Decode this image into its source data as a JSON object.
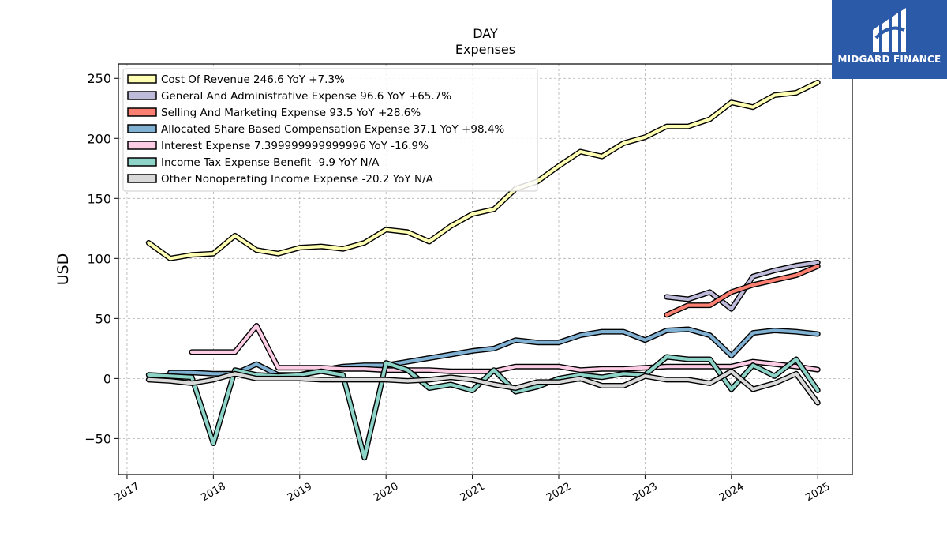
{
  "chart_data": {
    "type": "line",
    "title": "DAY",
    "subtitle": "Expenses",
    "xlabel": "",
    "ylabel": "USD",
    "xlim": [
      2016.9,
      2025.4
    ],
    "ylim": [
      -80,
      262
    ],
    "x_ticks": [
      "2017",
      "2018",
      "2019",
      "2020",
      "2021",
      "2022",
      "2023",
      "2024",
      "2025"
    ],
    "y_ticks": [
      -50,
      0,
      50,
      100,
      150,
      200,
      250
    ],
    "grid": true,
    "legend_position": "top-left",
    "series": [
      {
        "name": "Cost Of Revenue  246.6 YoY +7.3%",
        "color": "#ffffb3",
        "points": [
          [
            2017.25,
            113
          ],
          [
            2017.5,
            100
          ],
          [
            2017.75,
            103
          ],
          [
            2018.0,
            104
          ],
          [
            2018.25,
            119
          ],
          [
            2018.5,
            107
          ],
          [
            2018.75,
            104
          ],
          [
            2019.0,
            109
          ],
          [
            2019.25,
            110
          ],
          [
            2019.5,
            108
          ],
          [
            2019.75,
            113
          ],
          [
            2020.0,
            124
          ],
          [
            2020.25,
            122
          ],
          [
            2020.5,
            114
          ],
          [
            2020.75,
            127
          ],
          [
            2021.0,
            137
          ],
          [
            2021.25,
            141
          ],
          [
            2021.5,
            158
          ],
          [
            2021.75,
            164
          ],
          [
            2022.0,
            177
          ],
          [
            2022.25,
            189
          ],
          [
            2022.5,
            185
          ],
          [
            2022.75,
            196
          ],
          [
            2023.0,
            201
          ],
          [
            2023.25,
            210
          ],
          [
            2023.5,
            210
          ],
          [
            2023.75,
            216
          ],
          [
            2024.0,
            230
          ],
          [
            2024.25,
            226
          ],
          [
            2024.5,
            236
          ],
          [
            2024.75,
            238
          ],
          [
            2025.0,
            246.6
          ]
        ]
      },
      {
        "name": "General And Administrative Expense  96.6 YoY +65.7%",
        "color": "#bebada",
        "points": [
          [
            2023.25,
            68
          ],
          [
            2023.5,
            66
          ],
          [
            2023.75,
            72
          ],
          [
            2024.0,
            58
          ],
          [
            2024.25,
            85
          ],
          [
            2024.5,
            90
          ],
          [
            2024.75,
            94
          ],
          [
            2025.0,
            96.6
          ]
        ]
      },
      {
        "name": "Selling And Marketing Expense  93.5 YoY +28.6%",
        "color": "#fb8072",
        "points": [
          [
            2023.25,
            53
          ],
          [
            2023.5,
            61
          ],
          [
            2023.75,
            61
          ],
          [
            2024.0,
            72
          ],
          [
            2024.25,
            78
          ],
          [
            2024.5,
            82
          ],
          [
            2024.75,
            86
          ],
          [
            2025.0,
            93.5
          ]
        ]
      },
      {
        "name": "Allocated Share Based Compensation Expense  37.1 YoY +98.4%",
        "color": "#80b1d3",
        "points": [
          [
            2017.5,
            5
          ],
          [
            2017.75,
            5
          ],
          [
            2018.0,
            4
          ],
          [
            2018.25,
            4
          ],
          [
            2018.5,
            12
          ],
          [
            2018.75,
            3
          ],
          [
            2019.0,
            3
          ],
          [
            2019.25,
            7
          ],
          [
            2019.5,
            10
          ],
          [
            2019.75,
            11
          ],
          [
            2020.0,
            11
          ],
          [
            2020.25,
            14
          ],
          [
            2020.5,
            17
          ],
          [
            2020.75,
            20
          ],
          [
            2021.0,
            23
          ],
          [
            2021.25,
            25
          ],
          [
            2021.5,
            32
          ],
          [
            2021.75,
            30
          ],
          [
            2022.0,
            30
          ],
          [
            2022.25,
            36
          ],
          [
            2022.5,
            39
          ],
          [
            2022.75,
            39
          ],
          [
            2023.0,
            32
          ],
          [
            2023.25,
            40
          ],
          [
            2023.5,
            41
          ],
          [
            2023.75,
            36
          ],
          [
            2024.0,
            19
          ],
          [
            2024.25,
            38
          ],
          [
            2024.5,
            40
          ],
          [
            2024.75,
            39
          ],
          [
            2025.0,
            37.1
          ]
        ]
      },
      {
        "name": "Interest Expense  7.399999999999996 YoY -16.9%",
        "color": "#fccde5",
        "points": [
          [
            2017.75,
            22
          ],
          [
            2018.0,
            22
          ],
          [
            2018.25,
            22
          ],
          [
            2018.5,
            44
          ],
          [
            2018.75,
            9
          ],
          [
            2019.0,
            9
          ],
          [
            2019.25,
            9
          ],
          [
            2019.5,
            8
          ],
          [
            2019.75,
            8
          ],
          [
            2020.0,
            7
          ],
          [
            2020.25,
            7
          ],
          [
            2020.5,
            7
          ],
          [
            2020.75,
            6
          ],
          [
            2021.0,
            6
          ],
          [
            2021.25,
            6
          ],
          [
            2021.5,
            10
          ],
          [
            2021.75,
            10
          ],
          [
            2022.0,
            10
          ],
          [
            2022.25,
            7
          ],
          [
            2022.5,
            8
          ],
          [
            2022.75,
            8
          ],
          [
            2023.0,
            9
          ],
          [
            2023.25,
            10
          ],
          [
            2023.5,
            10
          ],
          [
            2023.75,
            10
          ],
          [
            2024.0,
            10
          ],
          [
            2024.25,
            14
          ],
          [
            2024.5,
            12
          ],
          [
            2024.75,
            10
          ],
          [
            2025.0,
            7.4
          ]
        ]
      },
      {
        "name": "Income Tax Expense Benefit  -9.9 YoY N/A",
        "color": "#8dd3c7",
        "points": [
          [
            2017.25,
            3
          ],
          [
            2017.5,
            2
          ],
          [
            2017.75,
            1
          ],
          [
            2018.0,
            -54
          ],
          [
            2018.25,
            7
          ],
          [
            2018.5,
            3
          ],
          [
            2018.75,
            2
          ],
          [
            2019.0,
            3
          ],
          [
            2019.25,
            6
          ],
          [
            2019.5,
            3
          ],
          [
            2019.75,
            -66
          ],
          [
            2020.0,
            13
          ],
          [
            2020.25,
            7
          ],
          [
            2020.5,
            -8
          ],
          [
            2020.75,
            -5
          ],
          [
            2021.0,
            -10
          ],
          [
            2021.25,
            7
          ],
          [
            2021.5,
            -11
          ],
          [
            2021.75,
            -7
          ],
          [
            2022.0,
            0
          ],
          [
            2022.25,
            3
          ],
          [
            2022.5,
            1
          ],
          [
            2022.75,
            4
          ],
          [
            2023.0,
            3
          ],
          [
            2023.25,
            18
          ],
          [
            2023.5,
            16
          ],
          [
            2023.75,
            16
          ],
          [
            2024.0,
            -9
          ],
          [
            2024.25,
            11
          ],
          [
            2024.5,
            2
          ],
          [
            2024.75,
            16
          ],
          [
            2025.0,
            -9.9
          ]
        ]
      },
      {
        "name": "Other Nonoperating Income Expense  -20.2 YoY N/A",
        "color": "#d9d9d9",
        "points": [
          [
            2017.25,
            -1
          ],
          [
            2017.5,
            -2
          ],
          [
            2017.75,
            -4
          ],
          [
            2018.0,
            -1
          ],
          [
            2018.25,
            4
          ],
          [
            2018.5,
            0
          ],
          [
            2018.75,
            0
          ],
          [
            2019.0,
            0
          ],
          [
            2019.25,
            -1
          ],
          [
            2019.5,
            -1
          ],
          [
            2019.75,
            -1
          ],
          [
            2020.0,
            -1
          ],
          [
            2020.25,
            -2
          ],
          [
            2020.5,
            -1
          ],
          [
            2020.75,
            1
          ],
          [
            2021.0,
            -1
          ],
          [
            2021.25,
            -5
          ],
          [
            2021.5,
            -8
          ],
          [
            2021.75,
            -3
          ],
          [
            2022.0,
            -3
          ],
          [
            2022.25,
            0
          ],
          [
            2022.5,
            -6
          ],
          [
            2022.75,
            -6
          ],
          [
            2023.0,
            2
          ],
          [
            2023.25,
            -1
          ],
          [
            2023.5,
            -1
          ],
          [
            2023.75,
            -4
          ],
          [
            2024.0,
            6
          ],
          [
            2024.25,
            -9
          ],
          [
            2024.5,
            -4
          ],
          [
            2024.75,
            4
          ],
          [
            2025.0,
            -20.2
          ]
        ]
      }
    ]
  },
  "logo": {
    "text": "MIDGARD FINANCE",
    "icon": "midgard-logo-icon",
    "background": "#2a5aa8"
  }
}
